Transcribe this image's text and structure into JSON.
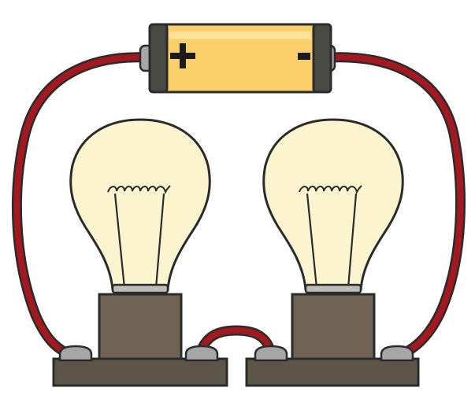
{
  "diagram": {
    "battery": {
      "positive_symbol": "+",
      "negative_symbol": "-",
      "body_color": "#fbcf6a",
      "cap_color": "#4a4a44"
    },
    "wire_color": "#a3191f",
    "bulb_glass_color": "#fbf4cf",
    "socket_color": "#6f6454",
    "base_color": "#5e5549",
    "terminal_color": "#a6a6a6",
    "outline_color": "#2b2b2b"
  }
}
